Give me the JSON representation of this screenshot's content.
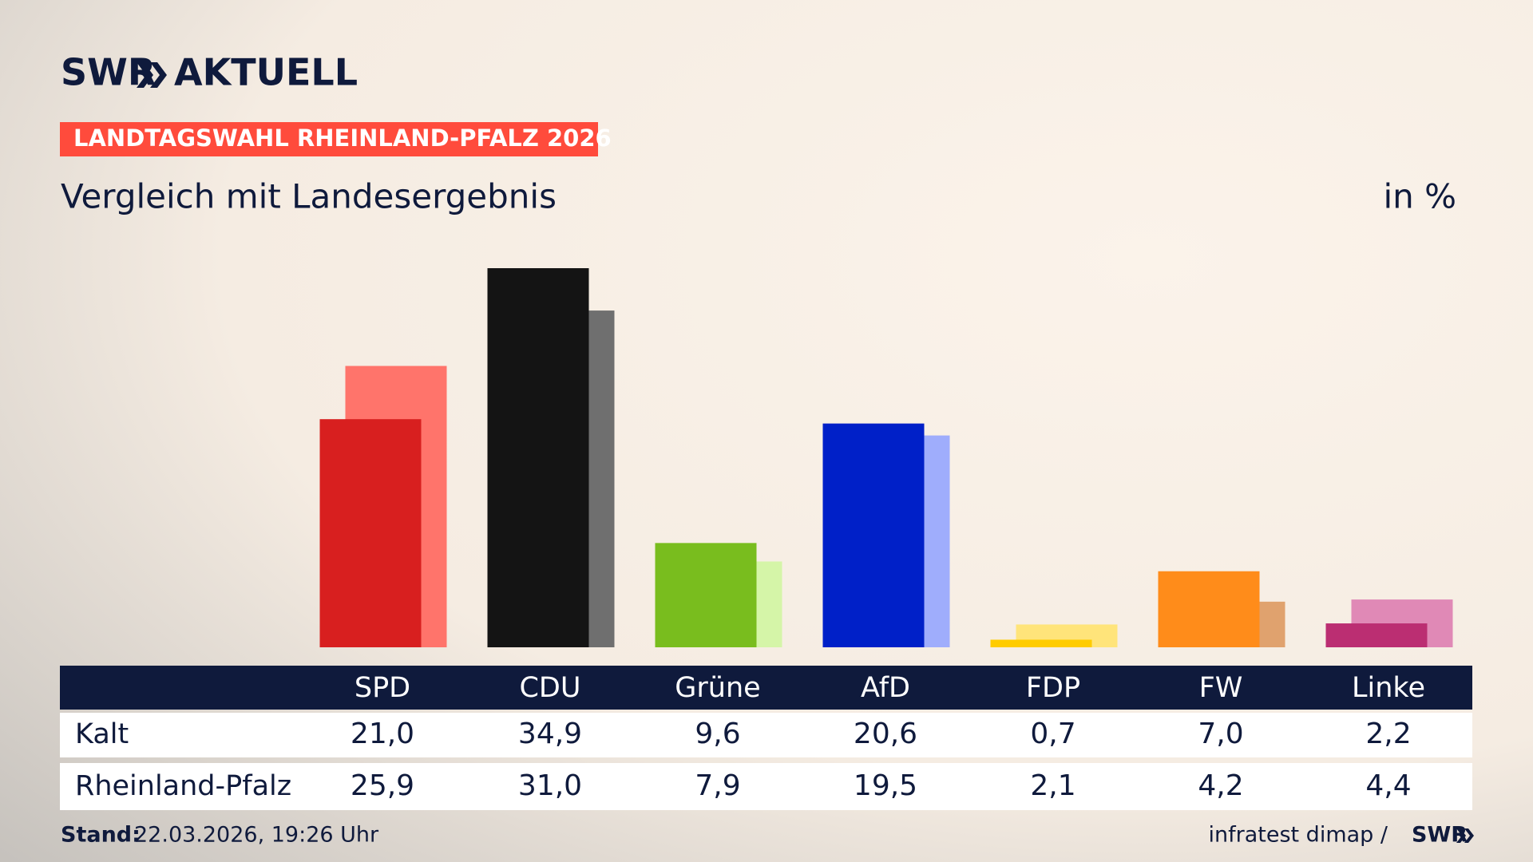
{
  "logo": {
    "brand": "SWR",
    "product": "AKTUELL"
  },
  "badge": "LANDTAGSWAHL RHEINLAND-PFALZ 2026",
  "footer": {
    "stand_label": "Stand:",
    "stand_value": "22.03.2026, 19:26 Uhr",
    "source": "infratest dimap /",
    "source_logo": "SWR"
  },
  "chart_data": {
    "type": "bar",
    "title": "Vergleich mit Landesergebnis",
    "unit": "in %",
    "categories": [
      "SPD",
      "CDU",
      "Grüne",
      "AfD",
      "FDP",
      "FW",
      "Linke"
    ],
    "series": [
      {
        "name": "Kalt",
        "colors": [
          "#d81f1f",
          "#141414",
          "#79bd1e",
          "#0020c8",
          "#ffcc00",
          "#ff8c1a",
          "#bb2e72"
        ],
        "values": [
          21.0,
          34.9,
          9.6,
          20.6,
          0.7,
          7.0,
          2.2
        ],
        "value_labels": [
          "21,0",
          "34,9",
          "9,6",
          "20,6",
          "0,7",
          "7,0",
          "2,2"
        ]
      },
      {
        "name": "Rheinland-Pfalz",
        "colors": [
          "#ff746b",
          "#6f6f6f",
          "#d5f5a8",
          "#9fadfc",
          "#ffe47a",
          "#e0a26e",
          "#e089b6"
        ],
        "values": [
          25.9,
          31.0,
          7.9,
          19.5,
          2.1,
          4.2,
          4.4
        ],
        "value_labels": [
          "25,9",
          "31,0",
          "7,9",
          "19,5",
          "2,1",
          "4,2",
          "4,4"
        ]
      }
    ]
  }
}
